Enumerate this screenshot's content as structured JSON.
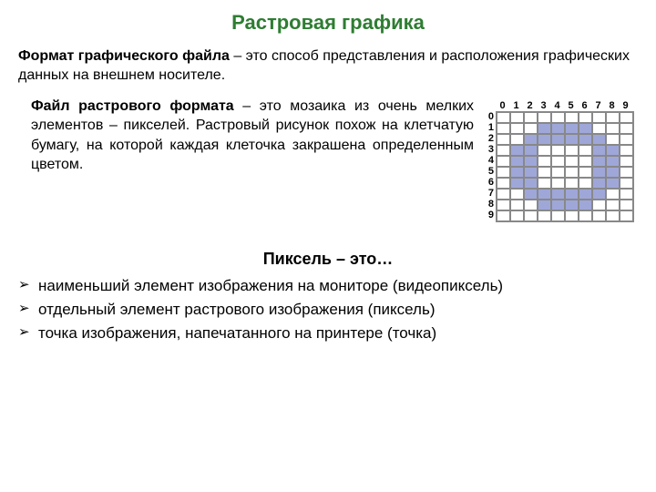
{
  "title": "Растровая графика",
  "para1": {
    "bold": "Формат графического файла",
    "tail": " – это способ представления и расположения графических данных на внешнем носителе."
  },
  "para2": {
    "bold": "Файл растрового формата",
    "tail": " – это мозаика из очень мелких элементов – пикселей. Растровый рисунок похож на клетчатую бумагу, на которой каждая клеточка закрашена определенным цветом."
  },
  "pixel_heading": "Пиксель – это…",
  "bullets": [
    "наименьший элемент изображения на мониторе (видеопиксель)",
    "отдельный элемент растрового изображения (пиксель)",
    "точка изображения, напечатанного на принтере (точка)"
  ],
  "bullet_mark": "➢",
  "grid": {
    "cols": 10,
    "rows": 10,
    "col_labels": [
      "0",
      "1",
      "2",
      "3",
      "4",
      "5",
      "6",
      "7",
      "8",
      "9"
    ],
    "row_labels": [
      "0",
      "1",
      "2",
      "3",
      "4",
      "5",
      "6",
      "7",
      "8",
      "9"
    ],
    "fill_color": "#9fa7d9",
    "empty_color": "#ffffff",
    "border_color": "#888888",
    "cells": [
      [
        0,
        0,
        0,
        0,
        0,
        0,
        0,
        0,
        0,
        0
      ],
      [
        0,
        0,
        0,
        1,
        1,
        1,
        1,
        0,
        0,
        0
      ],
      [
        0,
        0,
        1,
        1,
        1,
        1,
        1,
        1,
        0,
        0
      ],
      [
        0,
        1,
        1,
        0,
        0,
        0,
        0,
        1,
        1,
        0
      ],
      [
        0,
        1,
        1,
        0,
        0,
        0,
        0,
        1,
        1,
        0
      ],
      [
        0,
        1,
        1,
        0,
        0,
        0,
        0,
        1,
        1,
        0
      ],
      [
        0,
        1,
        1,
        0,
        0,
        0,
        0,
        1,
        1,
        0
      ],
      [
        0,
        0,
        1,
        1,
        1,
        1,
        1,
        1,
        0,
        0
      ],
      [
        0,
        0,
        0,
        1,
        1,
        1,
        1,
        0,
        0,
        0
      ],
      [
        0,
        0,
        0,
        0,
        0,
        0,
        0,
        0,
        0,
        0
      ]
    ]
  },
  "colors": {
    "title": "#2e7d32",
    "text": "#000000",
    "background": "#ffffff"
  }
}
